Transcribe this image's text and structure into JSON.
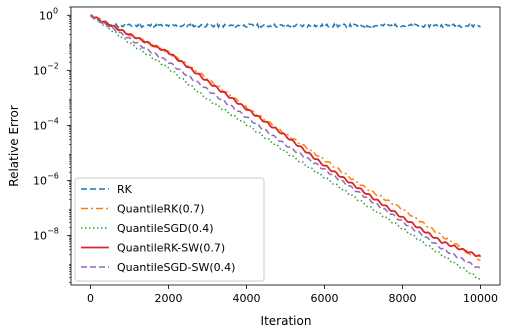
{
  "chart_data": {
    "type": "line",
    "title": "",
    "xlabel": "Iteration",
    "ylabel": "Relative Error",
    "xlim": [
      -500,
      10500
    ],
    "ylim": [
      1.6e-10,
      2.0
    ],
    "yscale": "log",
    "grid": false,
    "legend_position": "lower-left",
    "x_ticks": [
      0,
      2000,
      4000,
      6000,
      8000,
      10000
    ],
    "x_tick_labels": [
      "0",
      "2000",
      "4000",
      "6000",
      "8000",
      "10000"
    ],
    "y_ticks": [
      1e-08,
      1e-06,
      0.0001,
      0.01,
      1
    ],
    "y_tick_exponents": [
      "−8",
      "−6",
      "−4",
      "−2",
      "0"
    ],
    "y_tick_base": "10",
    "series": [
      {
        "name": "RK",
        "color": "#1f77b4",
        "dash": "dashed",
        "noisy": true,
        "x": [
          0,
          250,
          500,
          750,
          1000,
          2000,
          3000,
          4000,
          5000,
          6000,
          7000,
          8000,
          9000,
          10000
        ],
        "y": [
          1.0,
          0.55,
          0.45,
          0.42,
          0.42,
          0.42,
          0.42,
          0.42,
          0.42,
          0.42,
          0.42,
          0.42,
          0.42,
          0.42
        ]
      },
      {
        "name": "QuantileRK(0.7)",
        "color": "#ff7f0e",
        "dash": "dashdot",
        "x": [
          0,
          1000,
          2000,
          3000,
          4000,
          5000,
          6000,
          7000,
          8000,
          9000,
          10000
        ],
        "y": [
          1.0,
          0.2,
          0.045,
          0.005,
          0.00045,
          5e-05,
          5.6e-06,
          6e-07,
          9e-08,
          1e-08,
          1.3e-09
        ]
      },
      {
        "name": "QuantileSGD(0.4)",
        "color": "#2ca02c",
        "dash": "dotted",
        "x": [
          0,
          1000,
          2000,
          3000,
          4000,
          5000,
          6000,
          7000,
          8000,
          9000,
          10000
        ],
        "y": [
          1.0,
          0.1,
          0.012,
          0.0009,
          0.00011,
          1.1e-05,
          1.3e-06,
          1.5e-07,
          1.8e-08,
          2e-09,
          2.5e-10
        ]
      },
      {
        "name": "QuantileRK-SW(0.7)",
        "color": "#d62728",
        "dash": "solid",
        "x": [
          0,
          1000,
          2000,
          3000,
          4000,
          5000,
          6000,
          7000,
          8000,
          9000,
          10000
        ],
        "y": [
          1.0,
          0.2,
          0.045,
          0.004,
          0.0004,
          4.2e-05,
          3.5e-06,
          4e-07,
          4.5e-08,
          6e-09,
          1.7e-09
        ]
      },
      {
        "name": "QuantileSGD-SW(0.4)",
        "color": "#9467bd",
        "dash": "dashed",
        "x": [
          0,
          1000,
          2000,
          3000,
          4000,
          5000,
          6000,
          7000,
          8000,
          9000,
          10000
        ],
        "y": [
          1.0,
          0.14,
          0.02,
          0.002,
          0.0002,
          2e-05,
          2.5e-06,
          2.8e-07,
          3.2e-08,
          3.5e-09,
          6e-10
        ]
      }
    ]
  }
}
